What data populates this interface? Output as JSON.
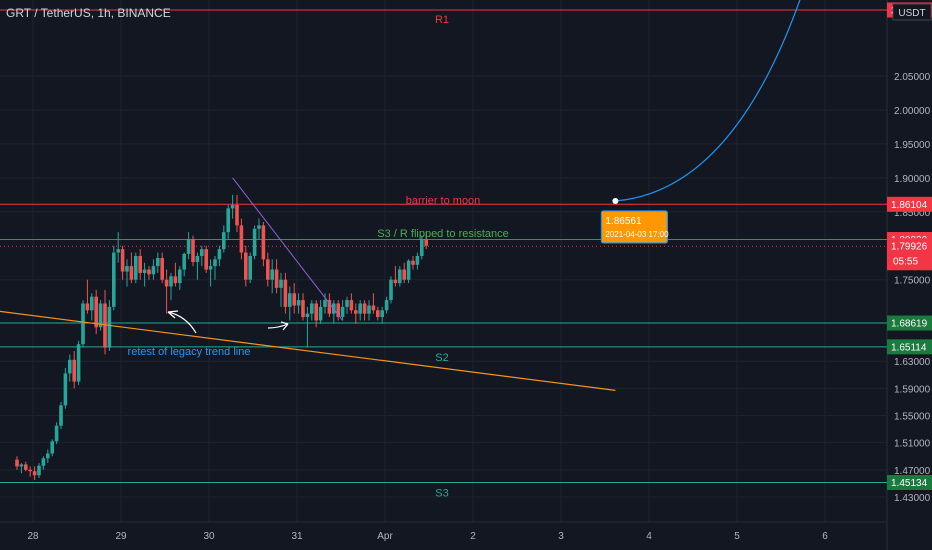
{
  "header": {
    "symbol_line": "GRT / TetherUS, 1h, BINANCE",
    "currency": "USDT"
  },
  "colors": {
    "background": "#131722",
    "up": "#26a69a",
    "down": "#ef5350",
    "resistance": "#f23645",
    "support": "#22ab94",
    "trendline": "#f7931a",
    "projection": "#2196f3",
    "callout": "#ff9800"
  },
  "chart_data": {
    "type": "candlestick",
    "title": "GRT / TetherUS, 1h, BINANCE",
    "ylim": [
      1.4,
      2.17
    ],
    "y_ticks": [
      "2.05000",
      "2.00000",
      "1.95000",
      "1.90000",
      "1.85000",
      "1.75000",
      "1.63000",
      "1.59000",
      "1.55000",
      "1.51000",
      "1.47000",
      "1.43000"
    ],
    "x_ticks": [
      {
        "label": "28",
        "day": 0
      },
      {
        "label": "29",
        "day": 1
      },
      {
        "label": "30",
        "day": 2
      },
      {
        "label": "31",
        "day": 3
      },
      {
        "label": "Apr",
        "day": 4
      },
      {
        "label": "2",
        "day": 5
      },
      {
        "label": "3",
        "day": 6
      },
      {
        "label": "4",
        "day": 7
      },
      {
        "label": "5",
        "day": 8
      },
      {
        "label": "6",
        "day": 9
      }
    ],
    "levels": [
      {
        "label": "R1",
        "price": 2.14724,
        "price_label": "2.14724",
        "kind": "resistance"
      },
      {
        "label": "",
        "price": 1.86104,
        "price_label": "1.86104",
        "kind": "resistance"
      },
      {
        "label": "",
        "price": 1.8092,
        "price_label": "1.80920",
        "kind": "resistance"
      },
      {
        "label": "",
        "price": 1.79926,
        "price_label": "1.79926",
        "kind": "current",
        "countdown": "05:55"
      },
      {
        "label": "",
        "price": 1.68619,
        "price_label": "1.68619",
        "kind": "support"
      },
      {
        "label": "S2",
        "price": 1.65114,
        "price_label": "1.65114",
        "kind": "support"
      },
      {
        "label": "S3",
        "price": 1.45134,
        "price_label": "1.45134",
        "kind": "support"
      }
    ],
    "annotations": {
      "barrier": "barrier to moon",
      "flip": "S3 / R flipped to resistance",
      "retest": "retest of legacy trend line",
      "callout_price": "1.86561",
      "callout_date": "2021-04-03 17:00"
    },
    "trendline": {
      "from": {
        "day": -0.35,
        "price": 1.706
      },
      "to": {
        "day": 6.8,
        "price": 1.587
      }
    },
    "channel_line": {
      "from": {
        "day": 2.45,
        "price": 1.9
      },
      "to": {
        "day": 3.7,
        "price": 1.69
      }
    },
    "projection": {
      "start": {
        "day": 6.8,
        "price": 1.866
      },
      "end": {
        "day": 8.95,
        "price": 2.17
      }
    },
    "candles": [
      [
        0.0,
        1.485,
        1.49,
        1.47,
        1.475
      ],
      [
        0.05,
        1.475,
        1.48,
        1.465,
        1.478
      ],
      [
        0.1,
        1.478,
        1.482,
        1.468,
        1.47
      ],
      [
        0.15,
        1.47,
        1.475,
        1.46,
        1.468
      ],
      [
        0.2,
        1.468,
        1.475,
        1.455,
        1.462
      ],
      [
        0.25,
        1.462,
        1.48,
        1.458,
        1.476
      ],
      [
        0.3,
        1.476,
        1.49,
        1.47,
        1.487
      ],
      [
        0.35,
        1.487,
        1.5,
        1.48,
        1.494
      ],
      [
        0.4,
        1.494,
        1.515,
        1.49,
        1.512
      ],
      [
        0.45,
        1.512,
        1.54,
        1.508,
        1.535
      ],
      [
        0.5,
        1.535,
        1.57,
        1.53,
        1.565
      ],
      [
        0.55,
        1.565,
        1.62,
        1.56,
        1.612
      ],
      [
        0.6,
        1.612,
        1.64,
        1.6,
        1.632
      ],
      [
        0.65,
        1.632,
        1.645,
        1.59,
        1.6
      ],
      [
        0.7,
        1.6,
        1.66,
        1.595,
        1.655
      ],
      [
        0.75,
        1.655,
        1.72,
        1.65,
        1.715
      ],
      [
        0.8,
        1.715,
        1.75,
        1.7,
        1.705
      ],
      [
        0.85,
        1.705,
        1.73,
        1.69,
        1.725
      ],
      [
        0.9,
        1.725,
        1.735,
        1.67,
        1.68
      ],
      [
        0.95,
        1.68,
        1.72,
        1.675,
        1.715
      ],
      [
        1.0,
        1.715,
        1.735,
        1.64,
        1.65
      ],
      [
        1.05,
        1.65,
        1.72,
        1.645,
        1.71
      ],
      [
        1.1,
        1.71,
        1.8,
        1.705,
        1.79
      ],
      [
        1.15,
        1.79,
        1.82,
        1.775,
        1.795
      ],
      [
        1.2,
        1.795,
        1.8,
        1.75,
        1.762
      ],
      [
        1.25,
        1.762,
        1.78,
        1.74,
        1.77
      ],
      [
        1.3,
        1.77,
        1.79,
        1.745,
        1.75
      ],
      [
        1.35,
        1.75,
        1.79,
        1.745,
        1.785
      ],
      [
        1.4,
        1.785,
        1.795,
        1.75,
        1.76
      ],
      [
        1.45,
        1.76,
        1.775,
        1.74,
        1.765
      ],
      [
        1.5,
        1.765,
        1.77,
        1.75,
        1.758
      ],
      [
        1.55,
        1.758,
        1.78,
        1.75,
        1.77
      ],
      [
        1.6,
        1.77,
        1.79,
        1.76,
        1.782
      ],
      [
        1.65,
        1.782,
        1.79,
        1.745,
        1.75
      ],
      [
        1.7,
        1.75,
        1.765,
        1.7,
        1.74
      ],
      [
        1.75,
        1.74,
        1.76,
        1.72,
        1.755
      ],
      [
        1.8,
        1.755,
        1.775,
        1.74,
        1.745
      ],
      [
        1.85,
        1.745,
        1.77,
        1.735,
        1.765
      ],
      [
        1.9,
        1.765,
        1.79,
        1.755,
        1.788
      ],
      [
        1.95,
        1.788,
        1.82,
        1.78,
        1.81
      ],
      [
        2.0,
        1.81,
        1.815,
        1.77,
        1.776
      ],
      [
        2.05,
        1.776,
        1.79,
        1.75,
        1.785
      ],
      [
        2.1,
        1.785,
        1.8,
        1.77,
        1.795
      ],
      [
        2.15,
        1.795,
        1.8,
        1.76,
        1.765
      ],
      [
        2.2,
        1.765,
        1.78,
        1.74,
        1.77
      ],
      [
        2.25,
        1.77,
        1.785,
        1.75,
        1.78
      ],
      [
        2.3,
        1.78,
        1.8,
        1.77,
        1.795
      ],
      [
        2.35,
        1.795,
        1.83,
        1.79,
        1.82
      ],
      [
        2.4,
        1.82,
        1.86,
        1.81,
        1.855
      ],
      [
        2.45,
        1.855,
        1.875,
        1.84,
        1.86
      ],
      [
        2.5,
        1.86,
        1.875,
        1.82,
        1.83
      ],
      [
        2.55,
        1.83,
        1.84,
        1.78,
        1.79
      ],
      [
        2.6,
        1.79,
        1.8,
        1.74,
        1.75
      ],
      [
        2.65,
        1.75,
        1.79,
        1.745,
        1.785
      ],
      [
        2.7,
        1.785,
        1.83,
        1.78,
        1.825
      ],
      [
        2.75,
        1.825,
        1.84,
        1.81,
        1.83
      ],
      [
        2.8,
        1.83,
        1.835,
        1.77,
        1.78
      ],
      [
        2.85,
        1.78,
        1.79,
        1.74,
        1.75
      ],
      [
        2.9,
        1.75,
        1.78,
        1.73,
        1.765
      ],
      [
        2.95,
        1.765,
        1.78,
        1.73,
        1.738
      ],
      [
        3.0,
        1.738,
        1.76,
        1.71,
        1.75
      ],
      [
        3.05,
        1.75,
        1.76,
        1.7,
        1.71
      ],
      [
        3.1,
        1.71,
        1.74,
        1.69,
        1.73
      ],
      [
        3.15,
        1.73,
        1.745,
        1.7,
        1.712
      ],
      [
        3.2,
        1.712,
        1.73,
        1.7,
        1.72
      ],
      [
        3.25,
        1.72,
        1.73,
        1.69,
        1.695
      ],
      [
        3.3,
        1.695,
        1.71,
        1.65,
        1.7
      ],
      [
        3.35,
        1.7,
        1.72,
        1.69,
        1.715
      ],
      [
        3.4,
        1.715,
        1.72,
        1.68,
        1.69
      ],
      [
        3.45,
        1.69,
        1.72,
        1.685,
        1.71
      ],
      [
        3.5,
        1.71,
        1.73,
        1.7,
        1.72
      ],
      [
        3.55,
        1.72,
        1.73,
        1.695,
        1.7
      ],
      [
        3.6,
        1.7,
        1.72,
        1.685,
        1.715
      ],
      [
        3.65,
        1.715,
        1.72,
        1.69,
        1.695
      ],
      [
        3.7,
        1.695,
        1.72,
        1.69,
        1.71
      ],
      [
        3.75,
        1.71,
        1.725,
        1.7,
        1.72
      ],
      [
        3.8,
        1.72,
        1.73,
        1.7,
        1.705
      ],
      [
        3.85,
        1.705,
        1.715,
        1.685,
        1.7
      ],
      [
        3.9,
        1.7,
        1.72,
        1.69,
        1.715
      ],
      [
        3.95,
        1.715,
        1.72,
        1.69,
        1.7
      ],
      [
        4.0,
        1.7,
        1.72,
        1.69,
        1.712
      ],
      [
        4.05,
        1.712,
        1.73,
        1.7,
        1.705
      ],
      [
        4.1,
        1.705,
        1.71,
        1.69,
        1.695
      ],
      [
        4.15,
        1.695,
        1.71,
        1.685,
        1.705
      ],
      [
        4.2,
        1.705,
        1.725,
        1.7,
        1.72
      ],
      [
        4.25,
        1.72,
        1.755,
        1.715,
        1.75
      ],
      [
        4.3,
        1.75,
        1.77,
        1.74,
        1.745
      ],
      [
        4.35,
        1.745,
        1.77,
        1.74,
        1.765
      ],
      [
        4.4,
        1.765,
        1.775,
        1.745,
        1.75
      ],
      [
        4.45,
        1.75,
        1.78,
        1.745,
        1.778
      ],
      [
        4.5,
        1.778,
        1.785,
        1.765,
        1.772
      ],
      [
        4.55,
        1.772,
        1.79,
        1.765,
        1.785
      ],
      [
        4.6,
        1.785,
        1.815,
        1.78,
        1.81
      ],
      [
        4.65,
        1.81,
        1.82,
        1.795,
        1.8
      ]
    ]
  }
}
